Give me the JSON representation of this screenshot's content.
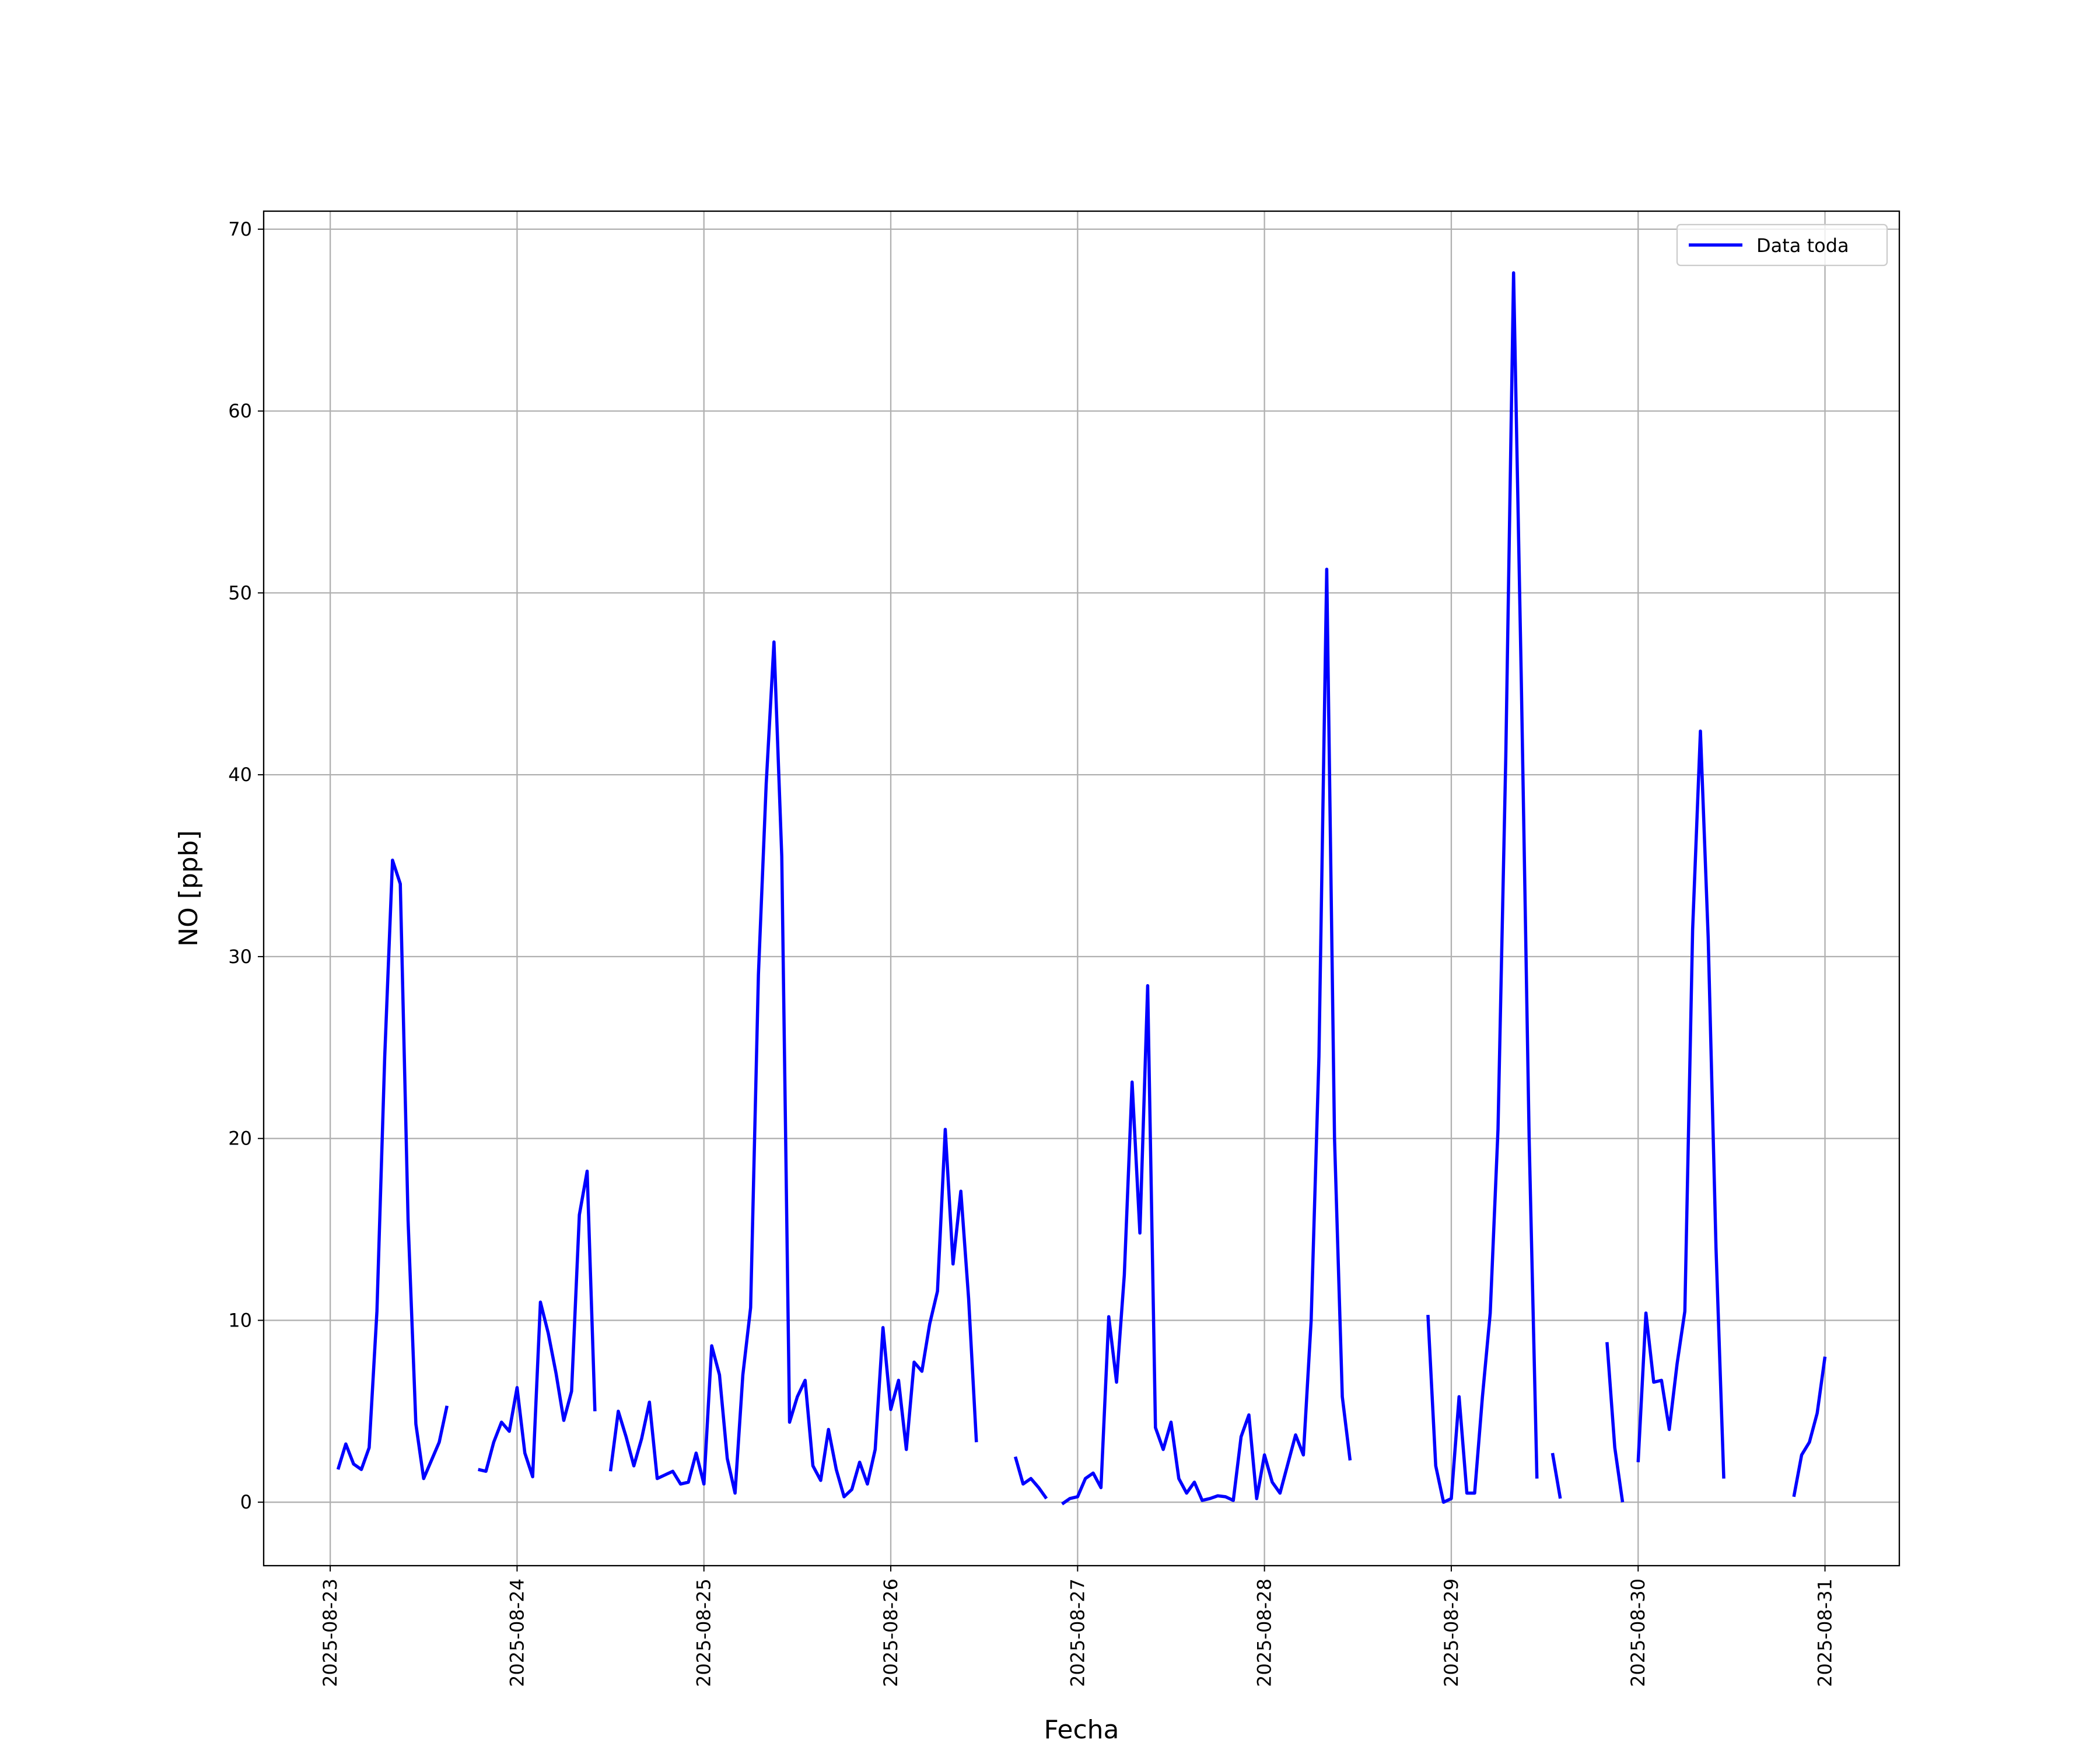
{
  "chart_data": {
    "type": "line",
    "xlabel": "Fecha",
    "ylabel": "NO [ppb]",
    "x": [
      "2025-08-23T01:00",
      "2025-08-23T02:00",
      "2025-08-23T03:00",
      "2025-08-23T04:00",
      "2025-08-23T05:00",
      "2025-08-23T06:00",
      "2025-08-23T07:00",
      "2025-08-23T08:00",
      "2025-08-23T09:00",
      "2025-08-23T10:00",
      "2025-08-23T11:00",
      "2025-08-23T12:00",
      "2025-08-23T13:00",
      "2025-08-23T14:00",
      "2025-08-23T15:00",
      "2025-08-23T16:00",
      "2025-08-23T19:00",
      "2025-08-23T20:00",
      "2025-08-23T21:00",
      "2025-08-23T22:00",
      "2025-08-23T23:00",
      "2025-08-24T00:00",
      "2025-08-24T01:00",
      "2025-08-24T02:00",
      "2025-08-24T03:00",
      "2025-08-24T04:00",
      "2025-08-24T05:00",
      "2025-08-24T06:00",
      "2025-08-24T07:00",
      "2025-08-24T08:00",
      "2025-08-24T09:00",
      "2025-08-24T10:00",
      "2025-08-24T11:00",
      "2025-08-24T12:00",
      "2025-08-24T13:00",
      "2025-08-24T14:00",
      "2025-08-24T15:00",
      "2025-08-24T16:00",
      "2025-08-24T17:00",
      "2025-08-24T18:00",
      "2025-08-24T19:00",
      "2025-08-24T20:00",
      "2025-08-24T21:00",
      "2025-08-24T22:00",
      "2025-08-24T23:00",
      "2025-08-25T00:00",
      "2025-08-25T01:00",
      "2025-08-25T02:00",
      "2025-08-25T03:00",
      "2025-08-25T04:00",
      "2025-08-25T05:00",
      "2025-08-25T06:00",
      "2025-08-25T07:00",
      "2025-08-25T08:00",
      "2025-08-25T09:00",
      "2025-08-25T10:00",
      "2025-08-25T11:00",
      "2025-08-25T12:00",
      "2025-08-25T13:00",
      "2025-08-25T14:00",
      "2025-08-25T15:00",
      "2025-08-25T16:00",
      "2025-08-25T17:00",
      "2025-08-25T18:00",
      "2025-08-25T19:00",
      "2025-08-25T20:00",
      "2025-08-25T21:00",
      "2025-08-25T22:00",
      "2025-08-25T23:00",
      "2025-08-26T00:00",
      "2025-08-26T01:00",
      "2025-08-26T02:00",
      "2025-08-26T03:00",
      "2025-08-26T04:00",
      "2025-08-26T05:00",
      "2025-08-26T06:00",
      "2025-08-26T07:00",
      "2025-08-26T08:00",
      "2025-08-26T09:00",
      "2025-08-26T10:00",
      "2025-08-26T11:00",
      "2025-08-26T12:00",
      "2025-08-26T16:00",
      "2025-08-26T17:00",
      "2025-08-26T18:00",
      "2025-08-26T19:00",
      "2025-08-26T20:00",
      "2025-08-26T21:00",
      "2025-08-26T22:00",
      "2025-08-26T23:00",
      "2025-08-27T00:00",
      "2025-08-27T01:00",
      "2025-08-27T02:00",
      "2025-08-27T03:00",
      "2025-08-27T04:00",
      "2025-08-27T05:00",
      "2025-08-27T06:00",
      "2025-08-27T07:00",
      "2025-08-27T08:00",
      "2025-08-27T09:00",
      "2025-08-27T10:00",
      "2025-08-27T11:00",
      "2025-08-27T12:00",
      "2025-08-27T13:00",
      "2025-08-27T14:00",
      "2025-08-27T15:00",
      "2025-08-27T16:00",
      "2025-08-27T17:00",
      "2025-08-27T18:00",
      "2025-08-27T19:00",
      "2025-08-27T20:00",
      "2025-08-27T21:00",
      "2025-08-27T22:00",
      "2025-08-27T23:00",
      "2025-08-28T00:00",
      "2025-08-28T01:00",
      "2025-08-28T02:00",
      "2025-08-28T03:00",
      "2025-08-28T04:00",
      "2025-08-28T05:00",
      "2025-08-28T06:00",
      "2025-08-28T07:00",
      "2025-08-28T08:00",
      "2025-08-28T09:00",
      "2025-08-28T10:00",
      "2025-08-28T11:00",
      "2025-08-28T12:00",
      "2025-08-28T21:00",
      "2025-08-28T22:00",
      "2025-08-28T23:00",
      "2025-08-29T00:00",
      "2025-08-29T01:00",
      "2025-08-29T02:00",
      "2025-08-29T03:00",
      "2025-08-29T04:00",
      "2025-08-29T05:00",
      "2025-08-29T06:00",
      "2025-08-29T07:00",
      "2025-08-29T08:00",
      "2025-08-29T09:00",
      "2025-08-29T10:00",
      "2025-08-29T11:00",
      "2025-08-29T12:00",
      "2025-08-29T13:00",
      "2025-08-29T14:00",
      "2025-08-29T15:00",
      "2025-08-29T20:00",
      "2025-08-29T21:00",
      "2025-08-29T22:00",
      "2025-08-29T23:00",
      "2025-08-30T00:00",
      "2025-08-30T01:00",
      "2025-08-30T02:00",
      "2025-08-30T03:00",
      "2025-08-30T04:00",
      "2025-08-30T05:00",
      "2025-08-30T06:00",
      "2025-08-30T07:00",
      "2025-08-30T08:00",
      "2025-08-30T09:00",
      "2025-08-30T10:00",
      "2025-08-30T11:00",
      "2025-08-30T12:00",
      "2025-08-30T20:00",
      "2025-08-30T21:00",
      "2025-08-30T22:00",
      "2025-08-30T23:00",
      "2025-08-31T00:00"
    ],
    "series": [
      {
        "name": "Data toda",
        "color": "#0000ff",
        "values": [
          1.8,
          3.2,
          2.1,
          1.8,
          3.0,
          10.5,
          24.5,
          35.3,
          34.0,
          15.5,
          4.3,
          1.3,
          2.3,
          3.3,
          5.3,
          null,
          1.8,
          1.7,
          3.3,
          4.4,
          3.9,
          6.3,
          2.7,
          1.4,
          11.0,
          9.3,
          7.1,
          4.5,
          6.1,
          15.8,
          18.2,
          5.0,
          null,
          1.7,
          5.0,
          3.6,
          2.0,
          3.5,
          5.5,
          1.3,
          1.5,
          1.7,
          1.0,
          1.1,
          2.7,
          1.0,
          8.6,
          7.0,
          2.4,
          0.5,
          7.0,
          10.7,
          29.0,
          39.5,
          47.3,
          35.5,
          4.4,
          5.8,
          6.7,
          2.0,
          1.2,
          4.0,
          1.8,
          0.3,
          0.7,
          2.2,
          1.0,
          2.9,
          9.6,
          5.1,
          6.7,
          2.9,
          7.7,
          7.2,
          9.8,
          11.6,
          20.5,
          13.1,
          17.1,
          11.2,
          3.3,
          null,
          2.5,
          1.0,
          1.3,
          0.8,
          0.2,
          null,
          -0.1,
          0.2,
          0.3,
          1.3,
          1.6,
          0.8,
          10.2,
          6.6,
          12.5,
          23.1,
          14.8,
          28.4,
          4.1,
          2.9,
          4.4,
          1.3,
          0.5,
          1.1,
          0.1,
          0.2,
          0.35,
          0.3,
          0.1,
          3.6,
          4.8,
          0.2,
          2.6,
          1.1,
          0.5,
          2.1,
          3.7,
          2.6,
          10.0,
          24.5,
          51.3,
          20.0,
          5.8,
          2.3,
          null,
          10.3,
          2.0,
          0.0,
          0.2,
          5.8,
          0.5,
          0.5,
          5.8,
          10.4,
          20.5,
          41.0,
          67.6,
          45.0,
          20.0,
          1.3,
          null,
          2.7,
          0.2,
          null,
          8.8,
          3.0,
          0.0,
          null,
          2.2,
          10.4,
          6.6,
          6.7,
          4.0,
          7.6,
          10.5,
          31.5,
          42.4,
          31.0,
          14.0,
          1.3,
          null,
          0.3,
          2.6,
          3.3,
          4.9,
          8.0
        ]
      }
    ],
    "xlim": [
      "2025-08-22T15:27",
      "2025-08-31T09:33"
    ],
    "xticks": [
      {
        "value": "2025-08-23T00:00",
        "label": "2025-08-23"
      },
      {
        "value": "2025-08-24T00:00",
        "label": "2025-08-24"
      },
      {
        "value": "2025-08-25T00:00",
        "label": "2025-08-25"
      },
      {
        "value": "2025-08-26T00:00",
        "label": "2025-08-26"
      },
      {
        "value": "2025-08-27T00:00",
        "label": "2025-08-27"
      },
      {
        "value": "2025-08-28T00:00",
        "label": "2025-08-28"
      },
      {
        "value": "2025-08-29T00:00",
        "label": "2025-08-29"
      },
      {
        "value": "2025-08-30T00:00",
        "label": "2025-08-30"
      },
      {
        "value": "2025-08-31T00:00",
        "label": "2025-08-31"
      }
    ],
    "ylim": [
      -3.49,
      70.99
    ],
    "yticks": [
      0,
      10,
      20,
      30,
      40,
      50,
      60,
      70
    ],
    "grid": true,
    "legend": "upper right"
  }
}
